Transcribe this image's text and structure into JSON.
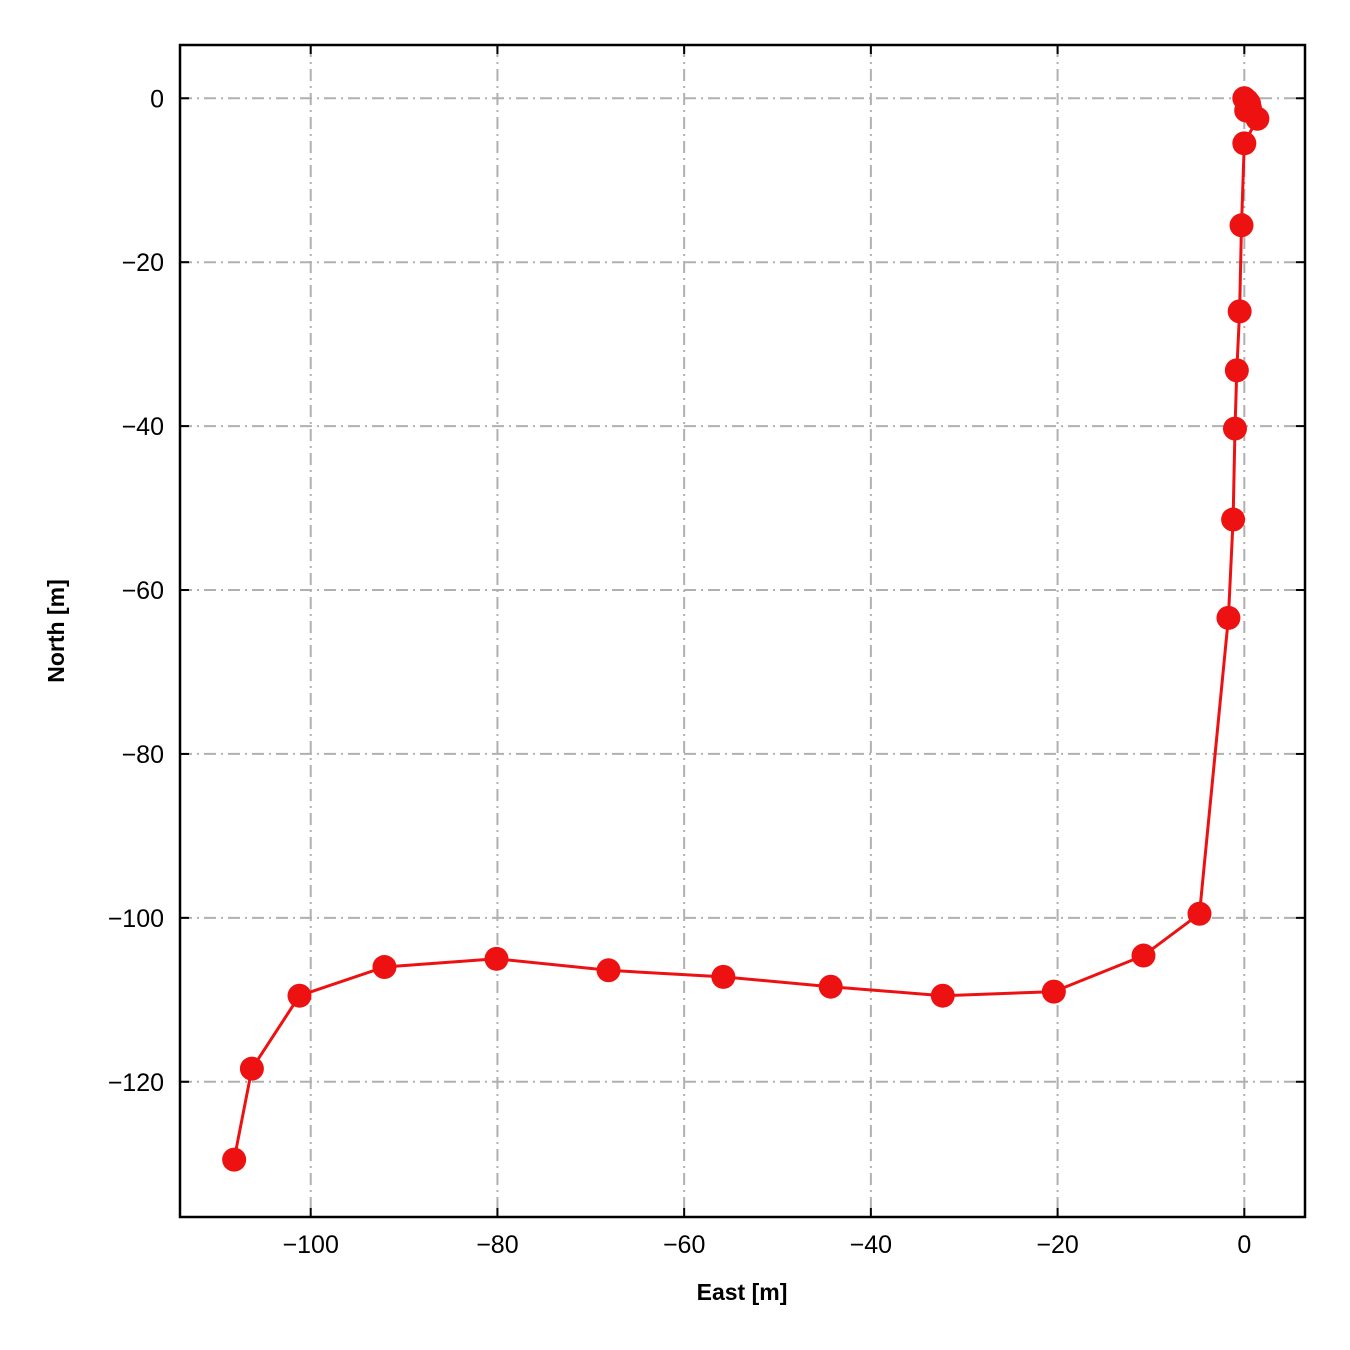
{
  "chart_data": {
    "type": "line",
    "xlabel": "East [m]",
    "ylabel": "North [m]",
    "xlim": [
      -114,
      6.5
    ],
    "ylim": [
      -136.5,
      6.5
    ],
    "grid": true,
    "x_ticks": [
      -100,
      -80,
      -60,
      -40,
      -20,
      0
    ],
    "y_ticks": [
      0,
      -20,
      -40,
      -60,
      -80,
      -100,
      -120
    ],
    "x_tick_labels": [
      "−100",
      "−80",
      "−60",
      "−40",
      "−20",
      "0"
    ],
    "y_tick_labels": [
      "0",
      "−20",
      "−40",
      "−60",
      "−80",
      "−100",
      "−120"
    ],
    "series": [
      {
        "color": "#ee1111",
        "marker": "circle",
        "points": [
          {
            "x": 0.0,
            "y": 0.0
          },
          {
            "x": 0.3,
            "y": -0.3
          },
          {
            "x": 0.5,
            "y": -0.6
          },
          {
            "x": 0.6,
            "y": -1.2
          },
          {
            "x": 0.2,
            "y": -1.5
          },
          {
            "x": 1.4,
            "y": -2.5
          },
          {
            "x": 0.0,
            "y": -5.5
          },
          {
            "x": -0.3,
            "y": -15.5
          },
          {
            "x": -0.5,
            "y": -26.0
          },
          {
            "x": -0.8,
            "y": -33.2
          },
          {
            "x": -1.0,
            "y": -40.3
          },
          {
            "x": -1.2,
            "y": -51.4
          },
          {
            "x": -1.7,
            "y": -63.4
          },
          {
            "x": -4.8,
            "y": -99.5
          },
          {
            "x": -10.8,
            "y": -104.6
          },
          {
            "x": -20.4,
            "y": -109.0
          },
          {
            "x": -32.3,
            "y": -109.5
          },
          {
            "x": -44.3,
            "y": -108.4
          },
          {
            "x": -55.8,
            "y": -107.2
          },
          {
            "x": -68.1,
            "y": -106.4
          },
          {
            "x": -80.1,
            "y": -105.0
          },
          {
            "x": -92.1,
            "y": -106.0
          },
          {
            "x": -101.2,
            "y": -109.5
          },
          {
            "x": -106.3,
            "y": -118.4
          },
          {
            "x": -108.2,
            "y": -129.5
          }
        ]
      }
    ]
  }
}
